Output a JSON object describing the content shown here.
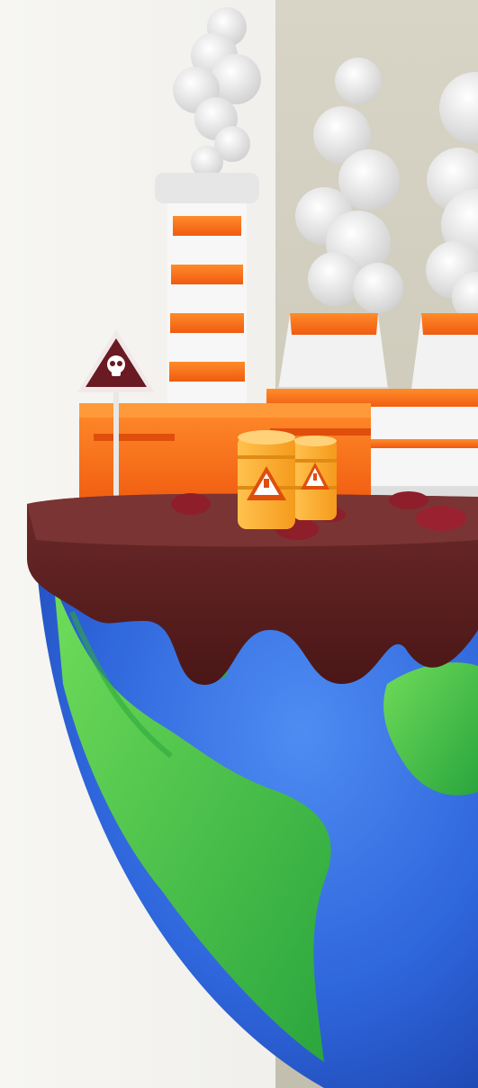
{
  "illustration": {
    "subject": "",
    "colors": {
      "background_left": "#f4f3f0",
      "background_right": "#c9c5b6",
      "ocean": "#2f6fe0",
      "ocean_dark": "#1f4fb8",
      "land": "#55c94a",
      "land_dark": "#2fa83c",
      "pollution_crust": "#5a2020",
      "pollution_crust_light": "#8a4a4a",
      "factory_orange": "#ff7a1a",
      "factory_orange_dark": "#e85e10",
      "stripe_white": "#f7f7f7",
      "smoke": "#e9e9e9",
      "barrel": "#ffb43a",
      "warning_sign": "#6a1a22"
    },
    "icons": [
      "skull-icon",
      "warning-triangle-icon",
      "smoke-cloud-icon",
      "globe-icon"
    ]
  }
}
